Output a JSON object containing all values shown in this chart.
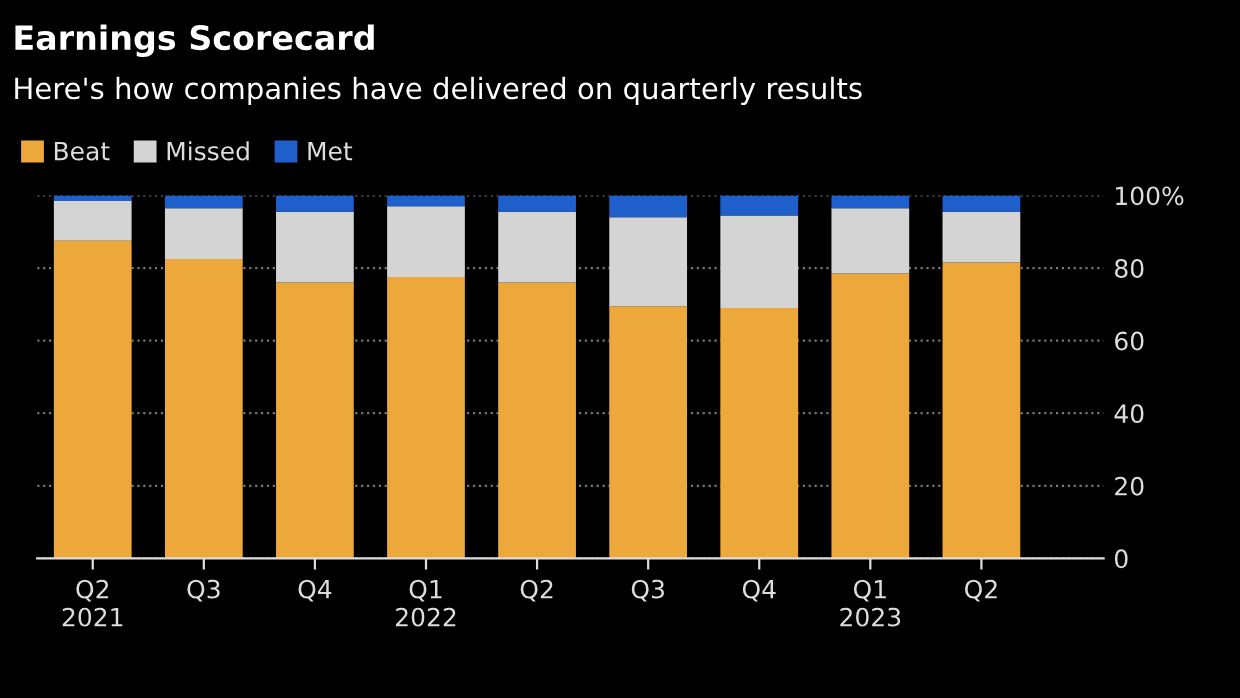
{
  "chart_data": {
    "type": "bar",
    "title": "Earnings Scorecard",
    "subtitle": "Here's how companies have delivered on quarterly results",
    "categories": [
      "Q2\n2021",
      "Q3",
      "Q4",
      "Q1\n2022",
      "Q2",
      "Q3",
      "Q4",
      "Q1\n2023",
      "Q2"
    ],
    "stacked": true,
    "series": [
      {
        "name": "Beat",
        "color": "#eca83a",
        "values": [
          87.5,
          82.5,
          76,
          77.5,
          76,
          69.5,
          69,
          78.5,
          81.5
        ]
      },
      {
        "name": "Missed",
        "color": "#d4d4d4",
        "values": [
          11,
          14,
          19.5,
          19.5,
          19.5,
          24.5,
          25.5,
          18,
          14
        ]
      },
      {
        "name": "Met",
        "color": "#1f5fcc",
        "values": [
          1.5,
          3.5,
          4.5,
          3,
          4.5,
          6,
          5.5,
          3.5,
          4.5
        ]
      }
    ],
    "ylim": [
      0,
      100
    ],
    "yticks": [
      0,
      20,
      40,
      60,
      80,
      {
        "value": 100,
        "label": "100%"
      }
    ],
    "grid": "y",
    "legend": "top left"
  }
}
